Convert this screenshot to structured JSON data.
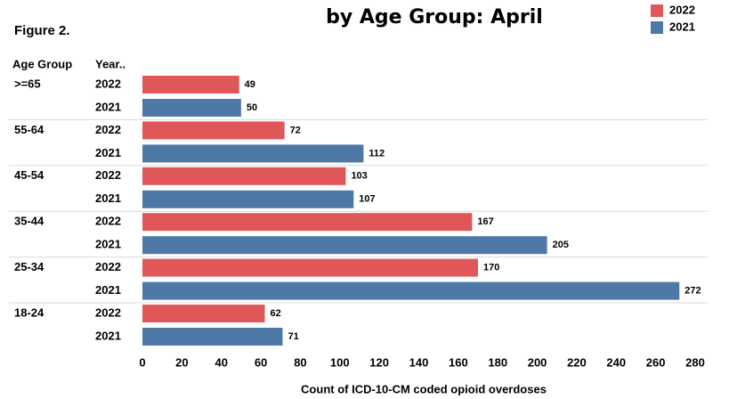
{
  "chart_data": {
    "type": "bar",
    "orientation": "horizontal",
    "title": "by Age Group: April",
    "figure_label": "Figure 2.",
    "row_header": "Age Group",
    "column_header": "Year..",
    "x_label": "Count of ICD-10-CM coded opioid overdoses",
    "categories": [
      ">=65",
      "55-64",
      "45-54",
      "35-44",
      "25-34",
      "18-24"
    ],
    "series": [
      {
        "name": "2022",
        "color": "#e05759",
        "values": [
          49,
          72,
          103,
          167,
          170,
          62
        ]
      },
      {
        "name": "2021",
        "color": "#4e79a7",
        "values": [
          50,
          112,
          107,
          205,
          272,
          71
        ]
      }
    ],
    "xlim": [
      0,
      280
    ],
    "xticks": [
      0,
      20,
      40,
      60,
      80,
      100,
      120,
      140,
      160,
      180,
      200,
      220,
      240,
      260,
      280
    ],
    "legend": "top-right"
  }
}
